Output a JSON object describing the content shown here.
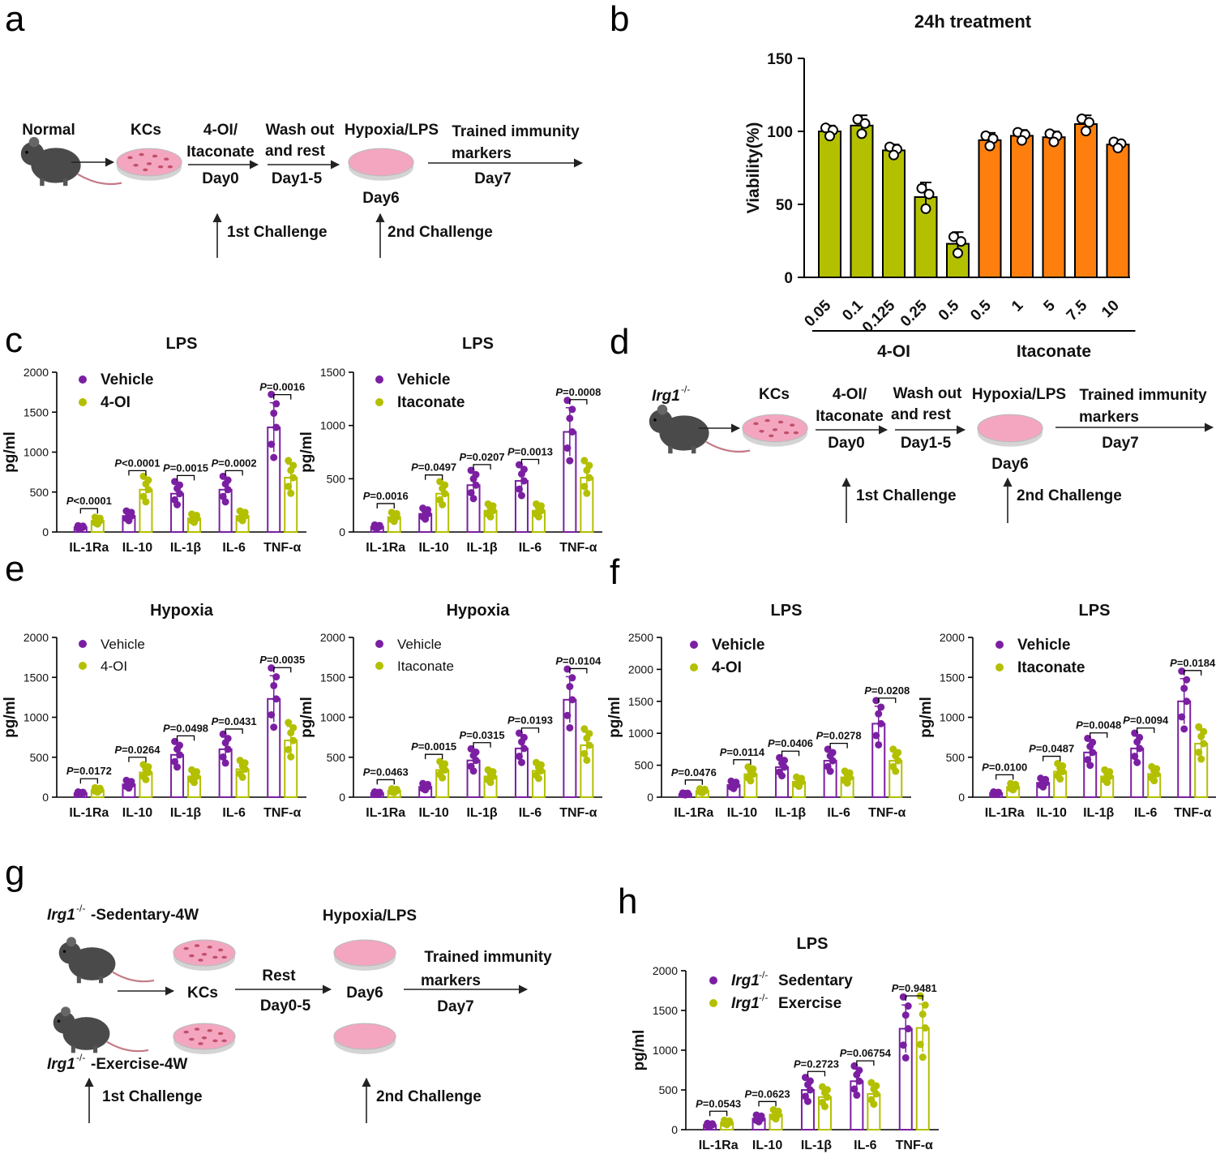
{
  "figure": {
    "panel_letters": [
      "a",
      "b",
      "c",
      "d",
      "e",
      "f",
      "g",
      "h"
    ],
    "colors": {
      "purple": "#7b1fa2",
      "olive": "#b3c000",
      "orange": "#ff7f0e",
      "mouse": "#4a4a4a",
      "dish": "#f4a6c0",
      "dish_rim": "#d4d4d4",
      "cell": "#c0506a",
      "arrow": "#222222"
    }
  },
  "schemes": {
    "a": {
      "labels": {
        "normal": "Normal",
        "kcs": "KCs",
        "treat1": "4-OI/",
        "treat2": "Itaconate",
        "day0": "Day0",
        "wash1": "Wash out",
        "wash2": "and rest",
        "day15": "Day1-5",
        "hyp": "Hypoxia/LPS",
        "day6": "Day6",
        "tr1": "Trained immunity",
        "tr2": "markers",
        "day7": "Day7",
        "ch1": "1st Challenge",
        "ch2": "2nd Challenge"
      }
    },
    "d": {
      "labels": {
        "normal_prefix": "Irg1",
        "normal_sup": "-/-",
        "kcs": "KCs",
        "treat1": "4-OI/",
        "treat2": "Itaconate",
        "day0": "Day0",
        "wash1": "Wash out",
        "wash2": "and rest",
        "day15": "Day1-5",
        "hyp": "Hypoxia/LPS",
        "day6": "Day6",
        "tr1": "Trained immunity",
        "tr2": "markers",
        "day7": "Day7",
        "ch1": "1st Challenge",
        "ch2": "2nd Challenge"
      }
    },
    "g": {
      "labels": {
        "irg": "Irg1",
        "sup": "-/-",
        "sed": "-Sedentary-4W",
        "exe": "-Exercise-4W",
        "kcs": "KCs",
        "rest": "Rest",
        "day05": "Day0-5",
        "hyp": "Hypoxia/LPS",
        "day6": "Day6",
        "tr1": "Trained immunity",
        "tr2": "markers",
        "day7": "Day7",
        "ch1": "1st Challenge",
        "ch2": "2nd Challenge"
      }
    }
  },
  "chart_data": [
    {
      "id": "b",
      "type": "bar",
      "title": "24h treatment",
      "ylabel": "Viability(%)",
      "xlabel": "",
      "ylim": [
        0,
        150
      ],
      "yticks": [
        0,
        50,
        100,
        150
      ],
      "categories": [
        "0.05",
        "0.1",
        "0.125",
        "0.25",
        "0.5",
        "0.5",
        "1",
        "5",
        "7.5",
        "10"
      ],
      "values": [
        100,
        104,
        87,
        55,
        23,
        94,
        97,
        96,
        105,
        91
      ],
      "errors": [
        4,
        7,
        4,
        10,
        8,
        5,
        4,
        4,
        6,
        3
      ],
      "bar_colors": [
        "olive",
        "olive",
        "olive",
        "olive",
        "olive",
        "orange",
        "orange",
        "orange",
        "orange",
        "orange"
      ],
      "groups": [
        {
          "label": "4-OI",
          "start": 0,
          "end": 4
        },
        {
          "label": "Itaconate",
          "start": 5,
          "end": 9
        }
      ]
    },
    {
      "id": "c1",
      "type": "bar",
      "title": "LPS",
      "ylabel": "pg/ml",
      "ylim": [
        0,
        2000
      ],
      "yticks": [
        0,
        500,
        1000,
        1500,
        2000
      ],
      "categories": [
        "IL-1Ra",
        "IL-10",
        "IL-1β",
        "IL-6",
        "TNF-α"
      ],
      "series": [
        {
          "name": "Vehicle",
          "color": "purple",
          "values": [
            60,
            200,
            480,
            530,
            1310
          ]
        },
        {
          "name": "4-OI",
          "color": "olive",
          "values": [
            140,
            530,
            170,
            200,
            680
          ]
        }
      ],
      "pvalues": [
        "<0.0001",
        "<0.0001",
        "=0.0015",
        "=0.0002",
        "=0.0016"
      ],
      "legend_style": "bold"
    },
    {
      "id": "c2",
      "type": "bar",
      "title": "LPS",
      "ylabel": "pg/ml",
      "ylim": [
        0,
        1500
      ],
      "yticks": [
        0,
        500,
        1000,
        1500
      ],
      "categories": [
        "IL-1Ra",
        "IL-10",
        "IL-1β",
        "IL-6",
        "TNF-α"
      ],
      "series": [
        {
          "name": "Vehicle",
          "color": "purple",
          "values": [
            50,
            170,
            440,
            480,
            940
          ]
        },
        {
          "name": "Itaconate",
          "color": "olive",
          "values": [
            140,
            360,
            200,
            200,
            510
          ]
        }
      ],
      "pvalues": [
        "=0.0016",
        "=0.0497",
        "=0.0207",
        "=0.0013",
        "=0.0008"
      ],
      "legend_style": "bold"
    },
    {
      "id": "e1",
      "type": "bar",
      "title": "Hypoxia",
      "ylabel": "pg/ml",
      "ylim": [
        0,
        2000
      ],
      "yticks": [
        0,
        500,
        1000,
        1500,
        2000
      ],
      "categories": [
        "IL-1Ra",
        "IL-10",
        "IL-1β",
        "IL-6",
        "TNF-α"
      ],
      "series": [
        {
          "name": "Vehicle",
          "color": "purple",
          "values": [
            50,
            160,
            530,
            600,
            1230
          ]
        },
        {
          "name": "4-OI",
          "color": "olive",
          "values": [
            90,
            310,
            260,
            350,
            710
          ]
        }
      ],
      "pvalues": [
        "=0.0172",
        "=0.0264",
        "=0.0498",
        "=0.0431",
        "=0.0035"
      ],
      "legend_style": "normal"
    },
    {
      "id": "e2",
      "type": "bar",
      "title": "Hypoxia",
      "ylabel": "pg/ml",
      "ylim": [
        0,
        2000
      ],
      "yticks": [
        0,
        500,
        1000,
        1500,
        2000
      ],
      "categories": [
        "IL-1Ra",
        "IL-10",
        "IL-1β",
        "IL-6",
        "TNF-α"
      ],
      "series": [
        {
          "name": "Vehicle",
          "color": "purple",
          "values": [
            50,
            130,
            460,
            610,
            1220
          ]
        },
        {
          "name": "Itaconate",
          "color": "olive",
          "values": [
            80,
            340,
            260,
            330,
            650
          ]
        }
      ],
      "pvalues": [
        "=0.0463",
        "=0.0015",
        "=0.0315",
        "=0.0193",
        "=0.0104"
      ],
      "legend_style": "normal"
    },
    {
      "id": "f1",
      "type": "bar",
      "title": "LPS",
      "ylabel": "pg/ml",
      "ylim": [
        0,
        2500
      ],
      "yticks": [
        0,
        500,
        1000,
        1500,
        2000,
        2500
      ],
      "categories": [
        "IL-1Ra",
        "IL-10",
        "IL-1β",
        "IL-6",
        "TNF-α"
      ],
      "series": [
        {
          "name": "Vehicle",
          "color": "purple",
          "values": [
            50,
            190,
            470,
            570,
            1150
          ]
        },
        {
          "name": "4-OI",
          "color": "olive",
          "values": [
            100,
            360,
            240,
            310,
            570
          ]
        }
      ],
      "pvalues": [
        "=0.0476",
        "=0.0114",
        "=0.0406",
        "=0.0278",
        "=0.0208"
      ],
      "legend_style": "bold"
    },
    {
      "id": "f2",
      "type": "bar",
      "title": "LPS",
      "ylabel": "pg/ml",
      "ylim": [
        0,
        2000
      ],
      "yticks": [
        0,
        500,
        1000,
        1500,
        2000
      ],
      "categories": [
        "IL-1Ra",
        "IL-10",
        "IL-1β",
        "IL-6",
        "TNF-α"
      ],
      "series": [
        {
          "name": "Vehicle",
          "color": "purple",
          "values": [
            50,
            180,
            560,
            610,
            1200
          ]
        },
        {
          "name": "Itaconate",
          "color": "olive",
          "values": [
            130,
            320,
            260,
            290,
            670
          ]
        }
      ],
      "pvalues": [
        "=0.0100",
        "=0.0487",
        "=0.0048",
        "=0.0094",
        "=0.0184"
      ],
      "legend_style": "bold"
    },
    {
      "id": "h",
      "type": "bar",
      "title": "LPS",
      "ylabel": "pg/ml",
      "ylim": [
        0,
        2000
      ],
      "yticks": [
        0,
        500,
        1000,
        1500,
        2000
      ],
      "categories": [
        "IL-1Ra",
        "IL-10",
        "IL-1β",
        "IL-6",
        "TNF-α"
      ],
      "series": [
        {
          "name": "Sedentary",
          "prefix": "Irg1",
          "sup": "-/-",
          "color": "purple",
          "values": [
            60,
            140,
            500,
            610,
            1270
          ]
        },
        {
          "name": "Exercise",
          "prefix": "Irg1",
          "sup": "-/-",
          "color": "olive",
          "values": [
            90,
            190,
            410,
            450,
            1280
          ]
        }
      ],
      "pvalues": [
        "=0.0543",
        "=0.0623",
        "=0.2723",
        "=0.06754",
        "=0.9481"
      ],
      "legend_style": "bold"
    }
  ]
}
